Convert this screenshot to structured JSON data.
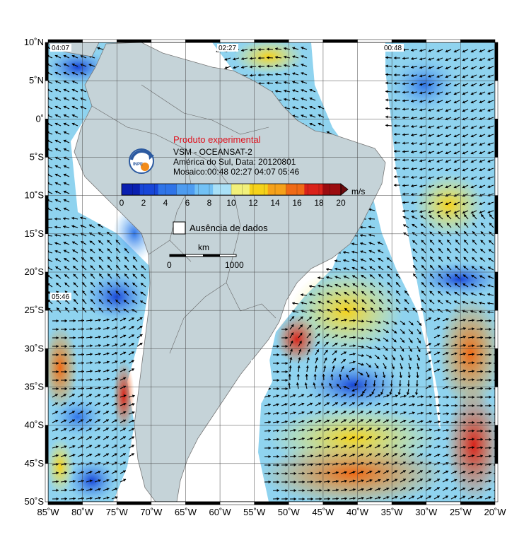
{
  "header": {
    "produto": "Produto experimental",
    "line1": "VSM - OCEANSAT-2",
    "line2": "América do Sul, Data: 20120801",
    "line3": "Mosaico:00:48 02:27 04:07 05:46"
  },
  "logo": {
    "text": "INPE"
  },
  "colorbar": {
    "unit": "m/s",
    "ticks": [
      "0",
      "2",
      "4",
      "6",
      "8",
      "10",
      "12",
      "14",
      "16",
      "18",
      "20"
    ],
    "colors": [
      "#0a1fb0",
      "#1746d8",
      "#2f74e8",
      "#4e9cf0",
      "#72c1f5",
      "#a9e0f7",
      "#f2f07a",
      "#f5d21a",
      "#f5a11a",
      "#ef6a16",
      "#d9221a",
      "#9b0c10"
    ]
  },
  "legend": {
    "no_data": "Ausência de dados"
  },
  "scalebar": {
    "unit": "km",
    "min": "0",
    "max": "1000"
  },
  "pass_times": [
    "04:07",
    "02:27",
    "00:48",
    "05:46"
  ],
  "lat_labels": [
    "10˚N",
    "5˚N",
    "0˚",
    "5˚S",
    "10˚S",
    "15˚S",
    "20˚S",
    "25˚S",
    "30˚S",
    "35˚S",
    "40˚S",
    "45˚S",
    "50˚S"
  ],
  "lon_labels": [
    "85˚W",
    "80˚W",
    "75˚W",
    "70˚W",
    "65˚W",
    "60˚W",
    "55˚W",
    "50˚W",
    "45˚W",
    "40˚W",
    "35˚W",
    "30˚W",
    "25˚W",
    "20˚W"
  ],
  "colors": {
    "land": "#c5d3d8",
    "ocean_base": "#8fd3ef"
  }
}
